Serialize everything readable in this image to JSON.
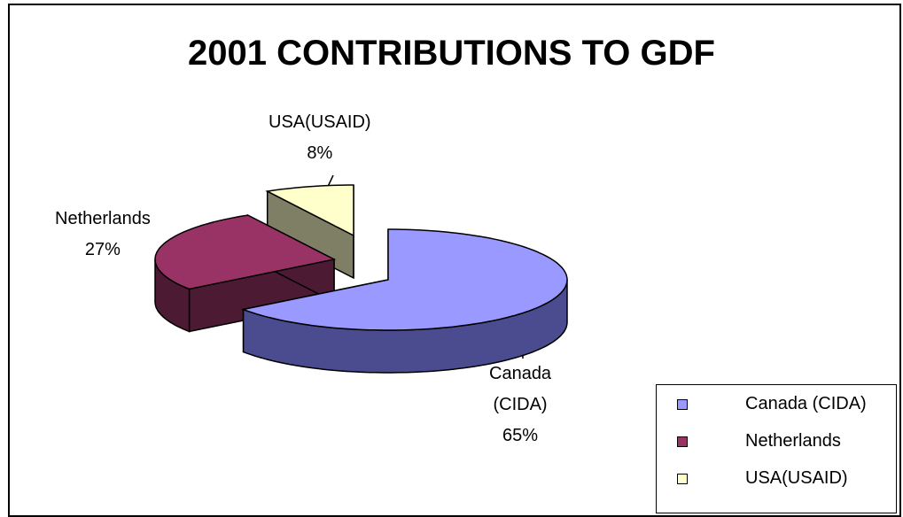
{
  "chart_data": {
    "type": "pie",
    "title": "2001 CONTRIBUTIONS TO GDF",
    "labels": [
      "Canada (CIDA)",
      "Netherlands",
      "USA(USAID)"
    ],
    "values": [
      65,
      27,
      8
    ],
    "unit": "%",
    "data_labels": [
      {
        "lines": [
          "Canada",
          "(CIDA)",
          "65%"
        ]
      },
      {
        "lines": [
          "Netherlands",
          "27%"
        ]
      },
      {
        "lines": [
          "USA(USAID)",
          "8%"
        ]
      }
    ],
    "legend": {
      "position": "bottom-right",
      "entries": [
        "Canada (CIDA)",
        "Netherlands",
        "USA(USAID)"
      ]
    },
    "style": "3d-exploded"
  },
  "colors": {
    "Canada (CIDA)": {
      "top": "#9999FF",
      "side": "#4B4B90",
      "stroke": "#000000"
    },
    "Netherlands": {
      "top": "#993366",
      "side": "#4C1A33",
      "stroke": "#000000"
    },
    "USA(USAID)": {
      "top": "#FFFFCC",
      "side": "#7F7F66",
      "stroke": "#000000"
    }
  }
}
